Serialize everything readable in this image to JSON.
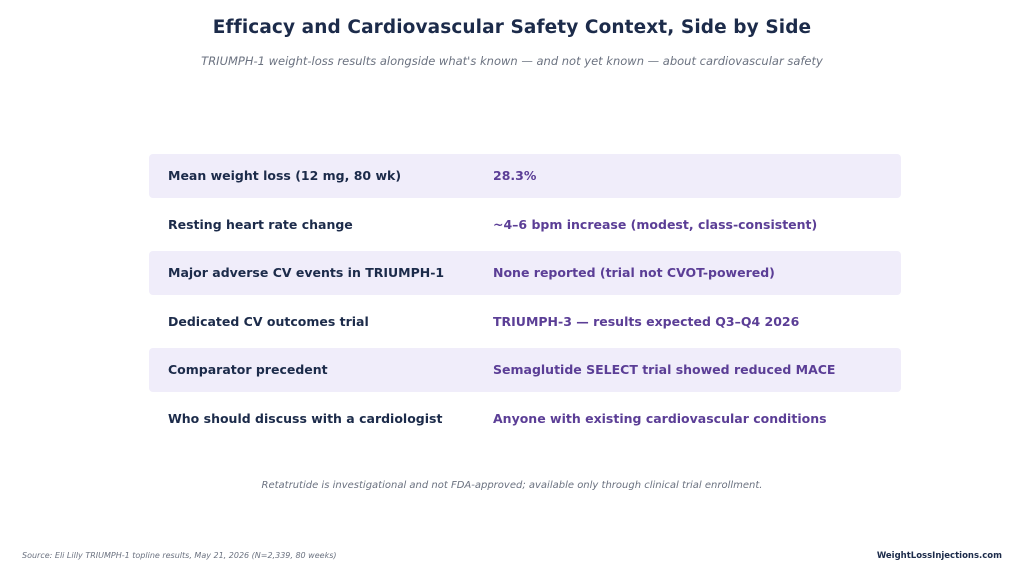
{
  "title": "Efficacy and Cardiovascular Safety Context, Side by Side",
  "subtitle": "TRIUMPH-1 weight-loss results alongside what's known — and not yet known — about cardiovascular safety",
  "rows": [
    {
      "label": "Mean weight loss (12 mg, 80 wk)",
      "value": "28.3%"
    },
    {
      "label": "Resting heart rate change",
      "value": "~4–6 bpm increase (modest, class-consistent)"
    },
    {
      "label": "Major adverse CV events in TRIUMPH-1",
      "value": "None reported (trial not CVOT-powered)"
    },
    {
      "label": "Dedicated CV outcomes trial",
      "value": "TRIUMPH-3 — results expected Q3–Q4 2026"
    },
    {
      "label": "Comparator precedent",
      "value": "Semaglutide SELECT trial showed reduced MACE"
    },
    {
      "label": "Who should discuss with a cardiologist",
      "value": "Anyone with existing cardiovascular conditions"
    }
  ],
  "disclaimer": "Retatrutide is investigational and not FDA-approved; available only through clinical trial enrollment.",
  "footer": {
    "source": "Source: Eli Lilly TRIUMPH-1 topline results, May 21, 2026 (N=2,339, 80 weeks)",
    "brand": "WeightLossInjections.com"
  },
  "colors": {
    "label_text": "#1c2b4a",
    "value_text": "#5b3e96",
    "shaded_row": "#f0edfa"
  }
}
